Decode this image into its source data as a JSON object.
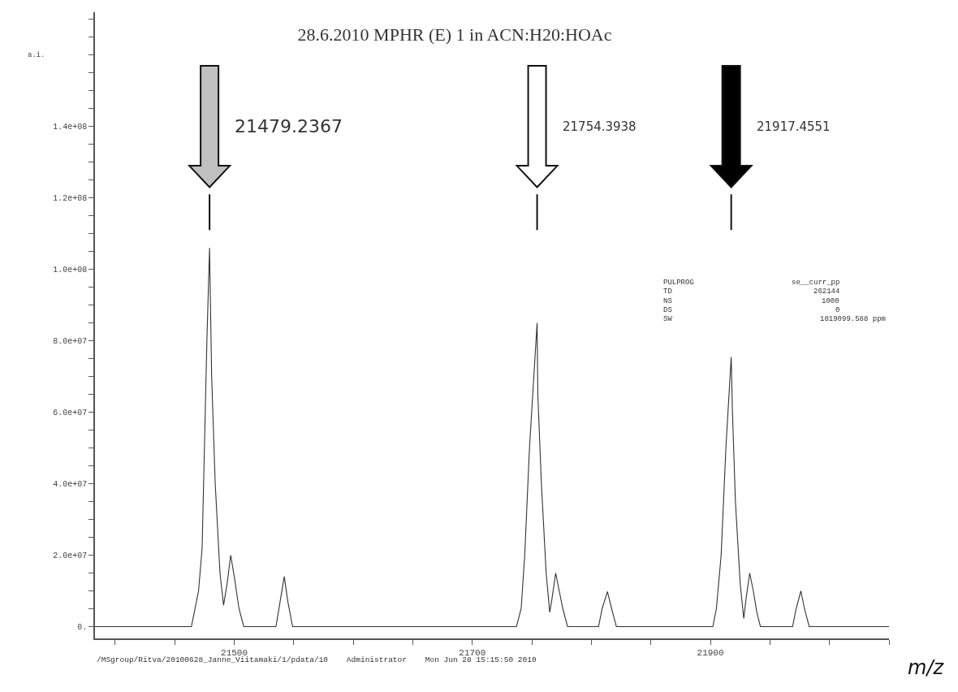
{
  "chart_data": {
    "type": "line",
    "title": "28.6.2010 MPHR (E) 1 in ACN:H20:HOAc",
    "xlabel": "m/z",
    "ylabel": "a.i.",
    "x": [
      21383,
      21464,
      21470,
      21473,
      21477,
      21479.2367,
      21481,
      21484,
      21488,
      21491,
      21494,
      21497,
      21500,
      21504,
      21508,
      21535,
      21538,
      21542,
      21545,
      21549,
      21737,
      21741,
      21744,
      21748,
      21754.3938,
      21755,
      21758,
      21762,
      21765,
      21767,
      21770,
      21773,
      21776,
      21780,
      21806,
      21809,
      21813.5,
      21817,
      21821,
      21902,
      21905,
      21909,
      21913,
      21917.4551,
      21918.5,
      21921,
      21925,
      21928,
      21930,
      21933,
      21936,
      21939,
      21942,
      21969,
      21972,
      21976,
      21979,
      21983,
      22050
    ],
    "series": [
      {
        "color": "#333333",
        "values": [
          0,
          0,
          10000000.0,
          22000000.0,
          80000000.0,
          106000000.0,
          70000000.0,
          40000000.0,
          15000000.0,
          6000000.0,
          12000000.0,
          20000000.0,
          14000000.0,
          5000000.0,
          0,
          0,
          6000000.0,
          14000000.0,
          7000000.0,
          0,
          0,
          5000000.0,
          20000000.0,
          50000000.0,
          85000000.0,
          65000000.0,
          40000000.0,
          15000000.0,
          4000000.0,
          8000000.0,
          15000000.0,
          10000000.0,
          5000000.0,
          0,
          0,
          5000000.0,
          9800000.0,
          5000000.0,
          0,
          0,
          5000000.0,
          20000000.0,
          50000000.0,
          75500000.0,
          60000000.0,
          35000000.0,
          12000000.0,
          2300000.0,
          8000000.0,
          15000000.0,
          10000000.0,
          4000000.0,
          0,
          0,
          5000000.0,
          10000000.0,
          5000000.0,
          0,
          0
        ]
      }
    ],
    "xlim": [
      21383,
      22050
    ],
    "xticks": [
      {
        "value": 21400,
        "label": null
      },
      {
        "value": 21450,
        "label": null
      },
      21500,
      {
        "value": 21550,
        "label": null
      },
      {
        "value": 21600,
        "label": null
      },
      {
        "value": 21650,
        "label": null
      },
      21700,
      {
        "value": 21750,
        "label": null
      },
      {
        "value": 21800,
        "label": null
      },
      {
        "value": 21850,
        "label": null
      },
      21900,
      {
        "value": 21950,
        "label": null
      },
      {
        "value": 22000,
        "label": null
      },
      {
        "value": 22050,
        "label": null
      }
    ],
    "ylim": [
      -3300000,
      172000000
    ],
    "yticks": [
      {
        "value": 0,
        "label": "0."
      },
      {
        "value": 5000000,
        "label": null
      },
      {
        "value": 10000000,
        "label": null
      },
      {
        "value": 15000000,
        "label": null
      },
      {
        "value": 20000000,
        "label": "2.0e+07"
      },
      {
        "value": 25000000,
        "label": null
      },
      {
        "value": 30000000,
        "label": null
      },
      {
        "value": 35000000,
        "label": null
      },
      {
        "value": 40000000,
        "label": "4.0e+07"
      },
      {
        "value": 45000000,
        "label": null
      },
      {
        "value": 50000000,
        "label": null
      },
      {
        "value": 55000000,
        "label": null
      },
      {
        "value": 60000000,
        "label": "6.0e+07"
      },
      {
        "value": 65000000,
        "label": null
      },
      {
        "value": 70000000,
        "label": null
      },
      {
        "value": 75000000,
        "label": null
      },
      {
        "value": 80000000,
        "label": "8.0e+07"
      },
      {
        "value": 85000000,
        "label": null
      },
      {
        "value": 90000000,
        "label": null
      },
      {
        "value": 95000000,
        "label": null
      },
      {
        "value": 100000000,
        "label": "1.0e+08"
      },
      {
        "value": 105000000,
        "label": null
      },
      {
        "value": 110000000,
        "label": null
      },
      {
        "value": 115000000,
        "label": null
      },
      {
        "value": 120000000,
        "label": "1.2e+08"
      },
      {
        "value": 125000000,
        "label": null
      },
      {
        "value": 130000000,
        "label": null
      },
      {
        "value": 135000000,
        "label": null
      },
      {
        "value": 140000000,
        "label": "1.4e+08"
      },
      {
        "value": 145000000,
        "label": null
      },
      {
        "value": 150000000,
        "label": null
      },
      {
        "value": 155000000,
        "label": null
      },
      {
        "value": 160000000,
        "label": null
      },
      {
        "value": 165000000,
        "label": null
      },
      {
        "value": 170000000,
        "label": null
      }
    ],
    "marker": "none",
    "line_style": "solid",
    "annotations": [
      "21479.2367",
      "21754.3938",
      "21917.4551",
      "PULPROG se__curr_pp",
      "TD 262144",
      "NS 1000",
      "DS 0",
      "SW 1819099.588 ppm",
      "/MSgroup/Ritva/20100628_Janne_Viitamaki/1/pdata/10   Administrator   Mon Jun 28 15:15:50 2010"
    ]
  }
}
